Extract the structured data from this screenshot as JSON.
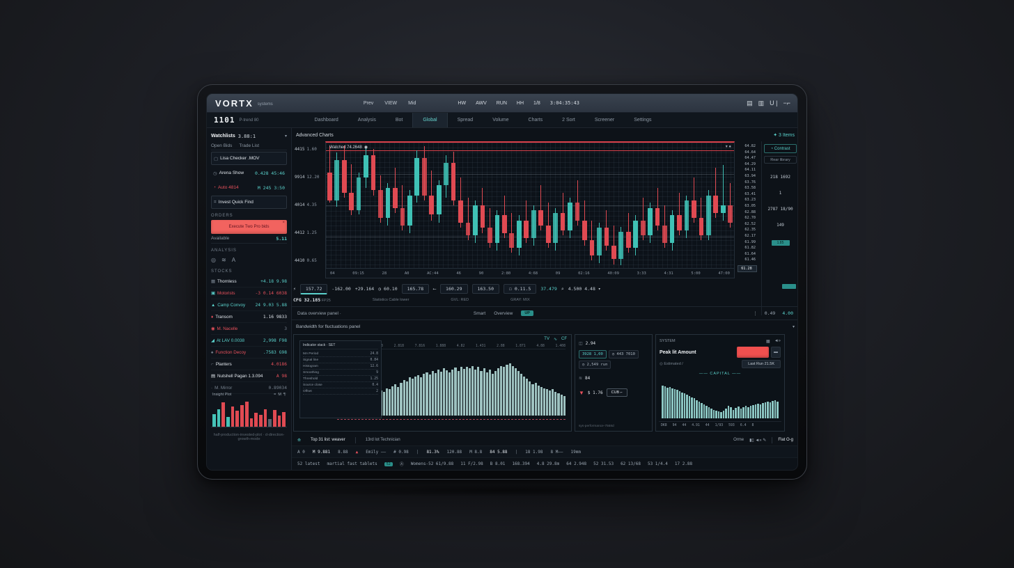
{
  "theme": {
    "accent": "#5ad1cb",
    "red": "#e8515c",
    "coral": "#f2635f",
    "up": "#3fc1b5",
    "down": "#e04a52",
    "panel_bg": "#0c1218",
    "topbar_bg": "#323b47"
  },
  "topbar": {
    "logo": "VORTX",
    "logo_sub": "systems",
    "menu": [
      "Prev",
      "VIEW",
      "Mid"
    ],
    "right_items": [
      "HW",
      "AWV",
      "RUN",
      "HH",
      "1/8"
    ],
    "clock": "3:04:35:43",
    "icons": [
      "grid-icon",
      "columns-icon",
      "user-icon",
      "minimize-icon"
    ]
  },
  "navbar": {
    "price": "1101",
    "price_label": "P-trend 80",
    "tabs": [
      {
        "label": "Dashboard",
        "c": ""
      },
      {
        "label": "Analysis",
        "c": ""
      },
      {
        "label": "Bot",
        "c": ""
      },
      {
        "label": "Global",
        "c": "active"
      },
      {
        "label": "Spread",
        "c": ""
      },
      {
        "label": "Volume",
        "c": ""
      },
      {
        "label": "Charts",
        "c": ""
      },
      {
        "label": "2 Sort",
        "c": ""
      },
      {
        "label": "Screener",
        "c": ""
      },
      {
        "label": "Settings",
        "c": ""
      }
    ]
  },
  "sidebar": {
    "header": {
      "title": "Watchlists",
      "value": "3.88:1",
      "chevron": "▾"
    },
    "tabs": [
      "Open Bids",
      "Trade List"
    ],
    "watch_rows": [
      {
        "ic": "▢",
        "icc": "mut",
        "name": "Lisa Checker .MOV",
        "nc": "wh",
        "val": "",
        "vc": "mut",
        "box": "box"
      },
      {
        "ic": "◷",
        "icc": "mut",
        "name": "Arena Show",
        "nc": "wh",
        "val": "0.428 45:46",
        "vc": "teal",
        "box": ""
      },
      {
        "ic": "◔",
        "icc": "red",
        "name": "Auto 4814",
        "nc": "red",
        "val": "M 245 3:50",
        "vc": "teal",
        "box": ""
      },
      {
        "ic": "⌗",
        "icc": "mut",
        "name": "Invest Quick Find",
        "nc": "wh",
        "val": "",
        "vc": "mut",
        "box": "box"
      }
    ],
    "order_label": "ORDERS",
    "order_button": "Execute Two Pro bids",
    "order_close": "×",
    "available_label": "Available",
    "available_value": "5.11",
    "analysis_label": "ANALYSIS",
    "analysis_icons": [
      "◎",
      "≋",
      "А"
    ],
    "stocks_label": "STOCKS",
    "stocks": [
      {
        "ic": "▦",
        "icc": "mut",
        "name": "Thornless",
        "nc": "wh",
        "val": "+4.18 9.98",
        "vc": "teal"
      },
      {
        "ic": "▣",
        "icc": "teal",
        "name": "Motorists",
        "nc": "red",
        "val": "-3 0.14 6038",
        "vc": "red"
      },
      {
        "ic": "▲",
        "icc": "teal",
        "name": "Camp Convoy",
        "nc": "teal",
        "val": "24 9.03 5.88",
        "vc": "teal"
      },
      {
        "ic": "♦",
        "icc": "red",
        "name": "Transom",
        "nc": "wh",
        "val": "1.16 9833",
        "vc": "wh"
      },
      {
        "ic": "◉",
        "icc": "red",
        "name": "M. Nacelle",
        "nc": "red",
        "val": "3",
        "vc": "mut"
      },
      {
        "ic": "◢",
        "icc": "teal",
        "name": "At LAV 0.0038",
        "nc": "teal",
        "val": "2,998 F98",
        "vc": "teal"
      },
      {
        "ic": "♠",
        "icc": "mut",
        "name": "Function Decoy",
        "nc": "red",
        "val": ".7583 G98",
        "vc": "teal"
      },
      {
        "ic": "⌐",
        "icc": "mut",
        "name": "Planters",
        "nc": "wh",
        "val": "4.0186",
        "vc": "red"
      },
      {
        "ic": "▤",
        "icc": "wh",
        "name": "Nutshell Pagan 1.3.094",
        "nc": "wh",
        "val": "A 98",
        "vc": "red"
      },
      {
        "ic": "·",
        "icc": "mut",
        "name": "M. Mirror",
        "nc": "mut",
        "val": "0.89034",
        "vc": "mut"
      }
    ],
    "mini_title": "Insight Plot",
    "mini_legend": [
      "=",
      "M",
      "¶"
    ],
    "caption": "half-production-invested-plot · d-direction-growth-mode"
  },
  "chart": {
    "section_title": "Advanced Charts",
    "items_badge": "✦ 3 Items",
    "plot_label": "Watched 74.2648",
    "plot_icons": "▾ ●",
    "y_axis": [
      {
        "a": "4415",
        "b": "1.60"
      },
      {
        "a": "9914",
        "b": "12.20"
      },
      {
        "a": "4014",
        "b": "4.35"
      },
      {
        "a": "4412",
        "b": "1.25"
      },
      {
        "a": "4410",
        "b": "0.65"
      }
    ],
    "x_axis": [
      "04",
      "09:15",
      "28",
      "A0",
      "AC:44",
      "46",
      "90",
      "2:80",
      "4:68",
      "09",
      "02:16",
      "40:09",
      "3:33",
      "4:31",
      "5:00",
      "47:00"
    ],
    "ladder": [
      "64.82",
      "64.64",
      "64.47",
      "64.29",
      "64.11",
      "63.94",
      "63.76",
      "63.58",
      "63.41",
      "63.23",
      "63.05",
      "62.88",
      "62.70",
      "62.52",
      "62.35",
      "62.17",
      "61.99",
      "61.82",
      "61.64",
      "61.46"
    ],
    "ladder_current": "61.28"
  },
  "rail": {
    "contrast_button": "◔ Contrast",
    "library_button": "Rear library",
    "values": [
      "218 1692",
      "1",
      "2787 18/90",
      "149"
    ],
    "badge": "1.85"
  },
  "toolbar": {
    "buttons": [
      {
        "t": "⚡",
        "c": ""
      },
      {
        "t": "157.72",
        "c": "box hl"
      },
      {
        "t": "-162.00",
        "c": ""
      },
      {
        "t": "+29.164",
        "c": ""
      },
      {
        "t": "◷ 60.10",
        "c": ""
      },
      {
        "t": "165.78",
        "c": "box"
      },
      {
        "t": "⟵",
        "c": ""
      },
      {
        "t": "160.29",
        "c": "box"
      },
      {
        "t": "163.50",
        "c": "box"
      },
      {
        "t": "☐ 0.11.5",
        "c": "box"
      },
      {
        "t": "37.479",
        "c": "teal"
      },
      {
        "t": "⌕",
        "c": ""
      },
      {
        "t": "4.500 4.48 ▾",
        "c": ""
      }
    ],
    "cap_left": "CFG 32.185",
    "cap_left2": "FP25",
    "cap_mid": "Statistics Cable lower",
    "cap_r1": "GVL: RED",
    "cap_r2": "GRAY: MIX"
  },
  "statusrow": {
    "left": "Data overview panel  ·",
    "mid1": "Smart",
    "mid2": "Overview",
    "up_badge": "UP",
    "dots": "⋮",
    "r1": "0.49",
    "r2": "4.00"
  },
  "panels": {
    "section_title": "Bandwidth for fluctuations panel",
    "chevron": "▾",
    "left": {
      "icons": [
        "TV",
        "∿",
        "CF"
      ],
      "legend_title": "Indicator stack · SET",
      "legend_rows": [
        {
          "label": "MA Period",
          "value": "24.8"
        },
        {
          "label": "Signal line",
          "value": "0.84"
        },
        {
          "label": "Histogram",
          "value": "12.6"
        },
        {
          "label": "Smoothing",
          "value": "9"
        },
        {
          "label": "Threshold",
          "value": "1.25"
        },
        {
          "label": "Source close",
          "value": "0.4"
        },
        {
          "label": "Offset",
          "value": "2"
        }
      ],
      "top_ticks": [
        "1.003",
        "4.88",
        "808",
        "2.818",
        "7.816",
        "1.888",
        "4.82",
        "1.431",
        "2.88",
        "1.871",
        "4.88",
        "1.408"
      ],
      "y_ticks": [
        "48",
        "36",
        "24",
        "12",
        "0"
      ]
    },
    "mid": {
      "h1_icon": "◫",
      "h1": "2.94",
      "btn1": "3928 1,00",
      "btn2": "◷ 443 7010",
      "btn3": "◷ 2,549 run",
      "h2_icon": "≋",
      "h2": "84",
      "funnel_icon": "▼",
      "price": "$ 1.76",
      "cub_button": "CUB ⌐",
      "caption": "sys-performance-7568d"
    },
    "right": {
      "header": "SYSTEM",
      "icons": [
        "▦",
        "◄»"
      ],
      "main_label": "Peak lit Amount",
      "sq_button": "▬",
      "sub_label": "◎ Estimated /",
      "lastrun_button": "Last Run 21.5K",
      "divider": "—— CAPITAL ——",
      "ticks": [
        "DK8",
        "94",
        "44",
        "4.91",
        "44",
        "1/93",
        "593",
        "6.4",
        "8"
      ]
    }
  },
  "bottombar": {
    "r1_icon": "⟰",
    "r1a": "Top 31 list: weaver",
    "r1b": "13rd lot Technician",
    "r1r1": "Orme",
    "r1r_icons": "▮▯ ◄»  ✎",
    "r1r2": "Flat O-g",
    "row2": [
      {
        "t": "A 0",
        "c": ""
      },
      {
        "t": "M 9.881",
        "c": "wh"
      },
      {
        "t": "8.88",
        "c": ""
      },
      {
        "t": "▲",
        "c": "dotred"
      },
      {
        "t": "Emily ——",
        "c": ""
      },
      {
        "t": "# 0.98",
        "c": ""
      },
      {
        "t": "|",
        "c": "mut"
      },
      {
        "t": "81.3%",
        "c": "wh"
      },
      {
        "t": "120.88",
        "c": ""
      },
      {
        "t": "M 8.8",
        "c": ""
      },
      {
        "t": "84 5.88",
        "c": "wh"
      },
      {
        "t": "|",
        "c": "mut"
      },
      {
        "t": "18 1.98",
        "c": ""
      },
      {
        "t": "8 M——",
        "c": ""
      },
      {
        "t": "19mm",
        "c": ""
      }
    ],
    "row3": [
      {
        "t": "52 latest",
        "c": ""
      },
      {
        "t": "martial fast tablets",
        "c": ""
      },
      {
        "t": "52",
        "c": "badge-sm"
      },
      {
        "t": "Ⓐ",
        "c": ""
      },
      {
        "t": "Womens-52 61/9.88",
        "c": ""
      },
      {
        "t": "11 F/2.98",
        "c": ""
      },
      {
        "t": "B 8.01",
        "c": ""
      },
      {
        "t": "168.394",
        "c": ""
      },
      {
        "t": "4.8 29.8m",
        "c": ""
      },
      {
        "t": "64 2.948",
        "c": ""
      },
      {
        "t": "52 31.53",
        "c": ""
      },
      {
        "t": "62 13/68",
        "c": ""
      },
      {
        "t": "53 1/4.4",
        "c": ""
      },
      {
        "t": "17 2.88",
        "c": ""
      }
    ]
  },
  "chart_data": [
    {
      "type": "candlestick",
      "title": "Watched 74.2648",
      "ylabel": "price",
      "ylim": [
        56.8,
        66.4
      ],
      "candles": [
        [
          64.2,
          66.3,
          61.8,
          62.0
        ],
        [
          62.0,
          65.8,
          61.5,
          65.2
        ],
        [
          65.2,
          66.4,
          62.2,
          62.6
        ],
        [
          62.6,
          64.9,
          60.8,
          61.2
        ],
        [
          61.2,
          64.2,
          60.9,
          63.8
        ],
        [
          63.8,
          66.2,
          63.0,
          65.6
        ],
        [
          65.6,
          66.1,
          62.4,
          62.8
        ],
        [
          62.8,
          64.0,
          60.2,
          60.6
        ],
        [
          60.6,
          63.4,
          60.0,
          63.0
        ],
        [
          63.0,
          64.6,
          61.0,
          61.4
        ],
        [
          61.4,
          63.2,
          59.6,
          60.0
        ],
        [
          60.0,
          62.8,
          59.4,
          62.4
        ],
        [
          62.4,
          66.0,
          61.8,
          65.4
        ],
        [
          65.4,
          66.3,
          62.0,
          62.4
        ],
        [
          62.4,
          64.4,
          60.4,
          60.9
        ],
        [
          60.9,
          63.6,
          60.2,
          63.2
        ],
        [
          63.2,
          65.6,
          62.2,
          65.0
        ],
        [
          65.0,
          65.9,
          61.6,
          62.0
        ],
        [
          62.0,
          63.8,
          59.8,
          60.2
        ],
        [
          60.2,
          62.2,
          58.8,
          59.2
        ],
        [
          59.2,
          62.0,
          58.6,
          61.6
        ],
        [
          61.6,
          63.0,
          59.4,
          59.8
        ],
        [
          59.8,
          61.4,
          58.2,
          58.6
        ],
        [
          58.6,
          61.2,
          58.0,
          60.8
        ],
        [
          60.8,
          62.4,
          59.0,
          59.4
        ],
        [
          59.4,
          61.0,
          57.8,
          58.2
        ],
        [
          58.2,
          60.8,
          57.6,
          60.4
        ],
        [
          60.4,
          62.0,
          58.6,
          59.0
        ],
        [
          59.0,
          61.6,
          58.4,
          61.2
        ],
        [
          61.2,
          63.2,
          59.6,
          60.0
        ],
        [
          60.0,
          61.8,
          58.2,
          58.6
        ],
        [
          58.6,
          61.4,
          58.0,
          61.0
        ],
        [
          61.0,
          62.6,
          59.2,
          59.6
        ],
        [
          59.6,
          62.2,
          59.0,
          61.8
        ],
        [
          61.8,
          63.6,
          60.0,
          60.4
        ],
        [
          60.4,
          62.0,
          58.4,
          58.8
        ],
        [
          58.8,
          60.4,
          57.2,
          57.6
        ],
        [
          57.6,
          60.2,
          57.0,
          59.8
        ],
        [
          59.8,
          61.2,
          58.0,
          58.4
        ],
        [
          58.4,
          60.0,
          56.9,
          57.3
        ],
        [
          57.3,
          59.9,
          56.8,
          59.5
        ],
        [
          59.5,
          61.0,
          57.8,
          58.2
        ],
        [
          58.2,
          60.8,
          57.6,
          60.4
        ],
        [
          60.4,
          62.2,
          58.8,
          59.2
        ],
        [
          59.2,
          61.8,
          58.6,
          61.4
        ],
        [
          61.4,
          63.0,
          59.6,
          60.0
        ],
        [
          60.0,
          61.6,
          58.2,
          58.6
        ],
        [
          58.6,
          61.2,
          58.0,
          60.8
        ],
        [
          60.8,
          62.6,
          59.2,
          59.6
        ],
        [
          59.6,
          62.4,
          59.0,
          62.0
        ],
        [
          62.0,
          63.8,
          60.2,
          60.6
        ],
        [
          60.6,
          62.2,
          58.8,
          59.2
        ],
        [
          59.2,
          62.8,
          58.8,
          62.4
        ],
        [
          62.4,
          64.6,
          60.6,
          61.0
        ],
        [
          61.0,
          64.8,
          60.4,
          61.6
        ],
        [
          61.6,
          63.4,
          59.8,
          60.2
        ]
      ]
    },
    {
      "type": "bar",
      "name": "fluctuation-volume-profile",
      "ylim": [
        0,
        100
      ],
      "values": [
        12,
        15,
        14,
        18,
        16,
        20,
        22,
        19,
        24,
        26,
        28,
        25,
        30,
        34,
        32,
        38,
        36,
        42,
        40,
        45,
        48,
        44,
        50,
        54,
        52,
        58,
        56,
        60,
        62,
        59,
        64,
        66,
        63,
        68,
        65,
        70,
        67,
        72,
        69,
        66,
        70,
        73,
        68,
        74,
        71,
        75,
        72,
        76,
        70,
        74,
        68,
        72,
        66,
        70,
        64,
        68,
        72,
        76,
        74,
        78,
        80,
        76,
        72,
        68,
        64,
        60,
        56,
        52,
        48,
        50,
        46,
        44,
        42,
        40,
        38,
        40,
        36,
        34,
        32,
        30
      ]
    },
    {
      "type": "bar",
      "name": "capital-histogram",
      "ylim": [
        0,
        100
      ],
      "values": [
        90,
        88,
        85,
        86,
        82,
        80,
        78,
        75,
        72,
        70,
        66,
        62,
        58,
        55,
        50,
        46,
        42,
        38,
        34,
        30,
        26,
        24,
        22,
        20,
        18,
        22,
        26,
        35,
        30,
        24,
        28,
        32,
        26,
        30,
        34,
        30,
        34,
        36,
        38,
        40,
        38,
        42,
        44,
        46,
        44,
        48,
        50,
        46
      ]
    },
    {
      "type": "bar",
      "name": "sidebar-insight-bars",
      "ylim": [
        0,
        100
      ],
      "values": [
        {
          "v": 45,
          "c": "t"
        },
        {
          "v": 60,
          "c": "t"
        },
        {
          "v": 85,
          "c": "r"
        },
        {
          "v": 35,
          "c": "t"
        },
        {
          "v": 70,
          "c": "r"
        },
        {
          "v": 55,
          "c": "r"
        },
        {
          "v": 75,
          "c": "r"
        },
        {
          "v": 88,
          "c": "r"
        },
        {
          "v": 30,
          "c": "r"
        },
        {
          "v": 50,
          "c": "r"
        },
        {
          "v": 42,
          "c": "r"
        },
        {
          "v": 62,
          "c": "r"
        },
        {
          "v": 28,
          "c": "g"
        },
        {
          "v": 58,
          "c": "r"
        },
        {
          "v": 40,
          "c": "r"
        },
        {
          "v": 52,
          "c": "r"
        }
      ]
    }
  ]
}
